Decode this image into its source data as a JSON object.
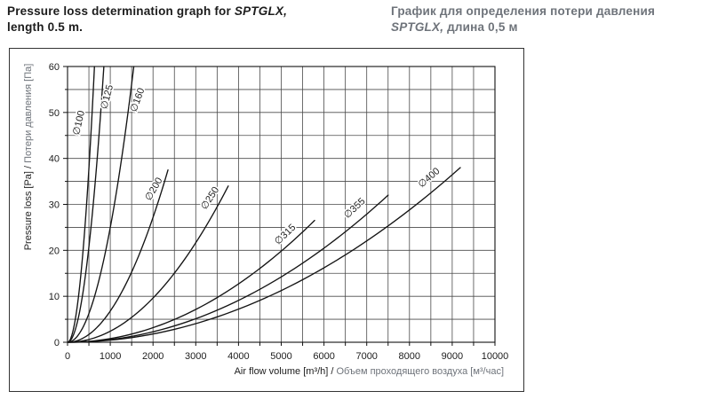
{
  "header": {
    "title_en": {
      "pre": "Pressure loss determination graph for ",
      "model": "SPTGLX,",
      "line2": "length 0.5 m."
    },
    "title_ru": {
      "line1": "График для определения потери давления",
      "model": "SPTGLX,",
      "line2_rest": " длина 0,5 м"
    }
  },
  "colors": {
    "text": "#1c1c1c",
    "muted_gray": "#6e737a",
    "grid": "#4a4a4a",
    "curve": "#141414",
    "frame": "#333333"
  },
  "chart_data": {
    "type": "line",
    "title": "",
    "xlabel_en": "Air flow volume [m³/h] / ",
    "xlabel_ru": "Объем проходящего воздуха [м³/час]",
    "ylabel_en": "Pressure loss [Pa] / ",
    "ylabel_ru": "Потери давления [Па]",
    "xlim": [
      0,
      10000
    ],
    "ylim": [
      0,
      60
    ],
    "x_label_step": 1000,
    "y_label_step": 10,
    "x_grid_step": 500,
    "y_grid_step": 5,
    "grid": true,
    "legend": "labels-on-curves",
    "curve_model": "quadratic: dp = dp_end * (q / q_end)^2, all curves start at (0,0)",
    "series": [
      {
        "name": "∅100",
        "end_point": {
          "q_m3h": 630,
          "dp_pa": 60
        },
        "label": {
          "q": 333,
          "p": 47.6,
          "angle": -77
        }
      },
      {
        "name": "∅125",
        "end_point": {
          "q_m3h": 850,
          "dp_pa": 60
        },
        "label": {
          "q": 990,
          "p": 53.2,
          "angle": -75
        }
      },
      {
        "name": "∅160",
        "end_point": {
          "q_m3h": 1550,
          "dp_pa": 60
        },
        "label": {
          "q": 1700,
          "p": 52.5,
          "angle": -70
        }
      },
      {
        "name": "∅200",
        "end_point": {
          "q_m3h": 2350,
          "dp_pa": 37.5
        },
        "label": {
          "q": 2080,
          "p": 33,
          "angle": -60
        }
      },
      {
        "name": "∅250",
        "end_point": {
          "q_m3h": 3760,
          "dp_pa": 34
        },
        "label": {
          "q": 3390,
          "p": 31,
          "angle": -57
        }
      },
      {
        "name": "∅315",
        "end_point": {
          "q_m3h": 5780,
          "dp_pa": 26.5
        },
        "label": {
          "q": 5140,
          "p": 23,
          "angle": -44
        }
      },
      {
        "name": "∅355",
        "end_point": {
          "q_m3h": 7500,
          "dp_pa": 32
        },
        "label": {
          "q": 6760,
          "p": 28.7,
          "angle": -43
        }
      },
      {
        "name": "∅400",
        "end_point": {
          "q_m3h": 9190,
          "dp_pa": 38
        },
        "label": {
          "q": 8500,
          "p": 35.3,
          "angle": -41
        }
      }
    ]
  }
}
